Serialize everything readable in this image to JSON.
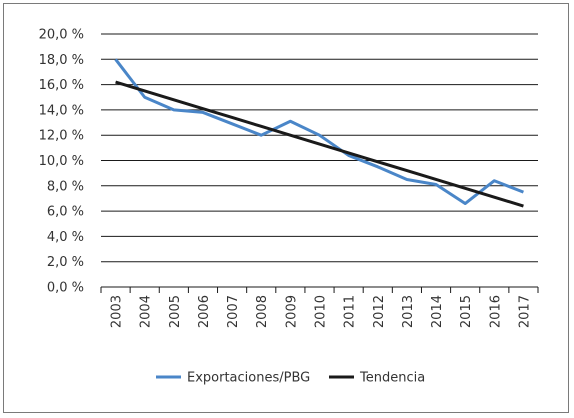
{
  "chart_data": {
    "type": "line",
    "title": "",
    "xlabel": "",
    "ylabel": "",
    "categories": [
      "2003",
      "2004",
      "2005",
      "2006",
      "2007",
      "2008",
      "2009",
      "2010",
      "2011",
      "2012",
      "2013",
      "2014",
      "2015",
      "2016",
      "2017"
    ],
    "yticks": [
      0,
      2,
      4,
      6,
      8,
      10,
      12,
      14,
      16,
      18,
      20
    ],
    "ytick_labels": [
      "0,0 %",
      "2,0 %",
      "4,0 %",
      "6,0 %",
      "8,0 %",
      "10,0 %",
      "12,0 %",
      "14,0 %",
      "16,0 %",
      "18,0 %",
      "20,0 %"
    ],
    "ylim": [
      0,
      20
    ],
    "grid": "horizontal",
    "legend_position": "bottom",
    "series": [
      {
        "name": "Exportaciones/PBG",
        "color": "#4a86c8",
        "values": [
          18.0,
          15.0,
          14.0,
          13.8,
          12.9,
          12.0,
          13.1,
          12.0,
          10.4,
          9.5,
          8.5,
          8.1,
          6.6,
          8.4,
          7.5
        ]
      },
      {
        "name": "Tendencia",
        "color": "#1a1a1a",
        "values": [
          16.2,
          15.5,
          14.8,
          14.1,
          13.4,
          12.7,
          12.0,
          11.3,
          10.6,
          9.9,
          9.2,
          8.5,
          7.8,
          7.1,
          6.4
        ]
      }
    ]
  }
}
